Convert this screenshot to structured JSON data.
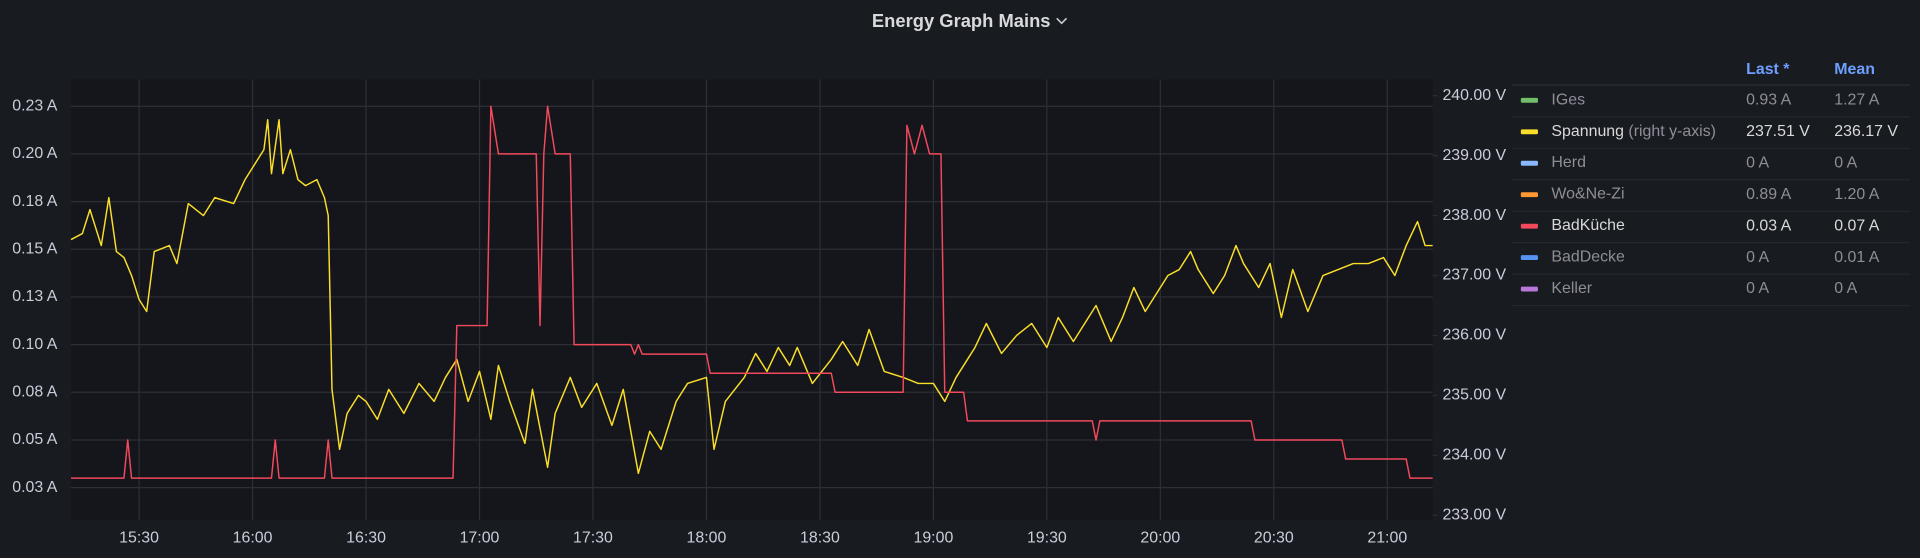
{
  "chart_data": {
    "type": "line",
    "title": "Energy Graph Mains",
    "xlim": [
      "15:12",
      "21:12"
    ],
    "xticks": [
      "15:30",
      "16:00",
      "16:30",
      "17:00",
      "17:30",
      "18:00",
      "18:30",
      "19:00",
      "19:30",
      "20:00",
      "20:30",
      "21:00"
    ],
    "ylim": [
      0.008,
      0.239
    ],
    "yticks": [
      {
        "value": 0.025,
        "label": "0.03 A"
      },
      {
        "value": 0.05,
        "label": "0.05 A"
      },
      {
        "value": 0.075,
        "label": "0.08 A"
      },
      {
        "value": 0.1,
        "label": "0.10 A"
      },
      {
        "value": 0.125,
        "label": "0.13 A"
      },
      {
        "value": 0.15,
        "label": "0.15 A"
      },
      {
        "value": 0.175,
        "label": "0.18 A"
      },
      {
        "value": 0.2,
        "label": "0.20 A"
      },
      {
        "value": 0.225,
        "label": "0.23 A"
      }
    ],
    "y2lim": [
      232.92,
      240.27
    ],
    "y2ticks": [
      {
        "value": 233,
        "label": "233.00 V"
      },
      {
        "value": 234,
        "label": "234.00 V"
      },
      {
        "value": 235,
        "label": "235.00 V"
      },
      {
        "value": 236,
        "label": "236.00 V"
      },
      {
        "value": 237,
        "label": "237.00 V"
      },
      {
        "value": 238,
        "label": "238.00 V"
      },
      {
        "value": 239,
        "label": "239.00 V"
      },
      {
        "value": 240,
        "label": "240.00 V"
      }
    ],
    "grid": true,
    "legend_position": "right",
    "legend_columns": [
      "Last *",
      "Mean"
    ],
    "series": [
      {
        "name": "IGes",
        "color": "#73bf69",
        "hidden": true,
        "last": "0.93 A",
        "mean": "1.27 A"
      },
      {
        "name": "Spannung",
        "note": "(right y-axis)",
        "color": "#fade2a",
        "axis": "y2",
        "last": "237.51 V",
        "mean": "236.17 V",
        "x": [
          "15:12",
          "15:15",
          "15:17",
          "15:20",
          "15:22",
          "15:24",
          "15:26",
          "15:28",
          "15:30",
          "15:32",
          "15:34",
          "15:38",
          "15:40",
          "15:43",
          "15:47",
          "15:50",
          "15:55",
          "15:58",
          "16:00",
          "16:03",
          "16:04",
          "16:05",
          "16:07",
          "16:08",
          "16:10",
          "16:12",
          "16:14",
          "16:17",
          "16:19",
          "16:20",
          "16:21",
          "16:23",
          "16:25",
          "16:28",
          "16:30",
          "16:33",
          "16:36",
          "16:40",
          "16:44",
          "16:48",
          "16:51",
          "16:54",
          "16:57",
          "17:00",
          "17:03",
          "17:05",
          "17:08",
          "17:12",
          "17:14",
          "17:18",
          "17:20",
          "17:24",
          "17:27",
          "17:31",
          "17:35",
          "17:38",
          "17:42",
          "17:45",
          "17:48",
          "17:52",
          "17:55",
          "18:00",
          "18:02",
          "18:05",
          "18:10",
          "18:13",
          "18:16",
          "18:19",
          "18:22",
          "18:24",
          "18:28",
          "18:33",
          "18:36",
          "18:40",
          "18:43",
          "18:47",
          "18:52",
          "18:56",
          "19:00",
          "19:03",
          "19:06",
          "19:08",
          "19:11",
          "19:14",
          "19:18",
          "19:22",
          "19:26",
          "19:30",
          "19:33",
          "19:37",
          "19:40",
          "19:43",
          "19:47",
          "19:50",
          "19:53",
          "19:56",
          "20:00",
          "20:02",
          "20:05",
          "20:08",
          "20:10",
          "20:14",
          "20:17",
          "20:20",
          "20:22",
          "20:26",
          "20:29",
          "20:32",
          "20:35",
          "20:39",
          "20:43",
          "20:47",
          "20:51",
          "20:55",
          "20:59",
          "21:02",
          "21:05",
          "21:08",
          "21:10",
          "21:12"
        ],
        "values": [
          237.6,
          237.7,
          238.1,
          237.5,
          238.3,
          237.4,
          237.3,
          237.0,
          236.6,
          236.4,
          237.4,
          237.5,
          237.2,
          238.2,
          238.0,
          238.3,
          238.2,
          238.6,
          238.8,
          239.1,
          239.6,
          238.7,
          239.6,
          238.7,
          239.1,
          238.6,
          238.5,
          238.6,
          238.3,
          238.0,
          235.1,
          234.1,
          234.7,
          235.0,
          234.9,
          234.6,
          235.1,
          234.7,
          235.2,
          234.9,
          235.3,
          235.6,
          234.9,
          235.4,
          234.6,
          235.5,
          234.9,
          234.2,
          235.1,
          233.8,
          234.7,
          235.3,
          234.8,
          235.2,
          234.5,
          235.1,
          233.7,
          234.4,
          234.1,
          234.9,
          235.2,
          235.3,
          234.1,
          234.9,
          235.3,
          235.7,
          235.4,
          235.8,
          235.5,
          235.8,
          235.2,
          235.6,
          235.9,
          235.5,
          236.1,
          235.4,
          235.3,
          235.2,
          235.2,
          234.9,
          235.3,
          235.5,
          235.8,
          236.2,
          235.7,
          236.0,
          236.2,
          235.8,
          236.3,
          235.9,
          236.2,
          236.5,
          235.9,
          236.3,
          236.8,
          236.4,
          236.8,
          237.0,
          237.1,
          237.4,
          237.1,
          236.7,
          237.0,
          237.5,
          237.2,
          236.8,
          237.2,
          236.3,
          237.1,
          236.4,
          237.0,
          237.1,
          237.2,
          237.2,
          237.3,
          237.0,
          237.5,
          237.9,
          237.5,
          237.5
        ]
      },
      {
        "name": "Herd",
        "color": "#8ab8ff",
        "hidden": true,
        "last": "0 A",
        "mean": "0 A"
      },
      {
        "name": "Wo&Ne-Zi",
        "color": "#ff9830",
        "hidden": true,
        "last": "0.89 A",
        "mean": "1.20 A"
      },
      {
        "name": "BadKüche",
        "color": "#f2495c",
        "last": "0.03 A",
        "mean": "0.07 A",
        "x": [
          "15:12",
          "15:26",
          "15:27",
          "15:28",
          "16:05",
          "16:06",
          "16:07",
          "16:19",
          "16:20",
          "16:21",
          "16:53",
          "16:54",
          "17:02",
          "17:03",
          "17:05",
          "17:15",
          "17:16",
          "17:17",
          "17:18",
          "17:20",
          "17:24",
          "17:25",
          "17:40",
          "17:41",
          "17:42",
          "17:43",
          "18:00",
          "18:01",
          "18:33",
          "18:34",
          "18:52",
          "18:53",
          "18:55",
          "18:57",
          "18:59",
          "19:02",
          "19:03",
          "19:08",
          "19:09",
          "19:42",
          "19:43",
          "19:44",
          "20:24",
          "20:25",
          "20:48",
          "20:49",
          "21:05",
          "21:06",
          "21:12"
        ],
        "values": [
          0.03,
          0.03,
          0.05,
          0.03,
          0.03,
          0.05,
          0.03,
          0.03,
          0.05,
          0.03,
          0.03,
          0.11,
          0.11,
          0.225,
          0.2,
          0.2,
          0.11,
          0.2,
          0.225,
          0.2,
          0.2,
          0.1,
          0.1,
          0.095,
          0.1,
          0.095,
          0.095,
          0.085,
          0.085,
          0.075,
          0.075,
          0.215,
          0.2,
          0.215,
          0.2,
          0.2,
          0.075,
          0.075,
          0.06,
          0.06,
          0.05,
          0.06,
          0.06,
          0.05,
          0.05,
          0.04,
          0.04,
          0.03,
          0.03
        ]
      },
      {
        "name": "BadDecke",
        "color": "#5794f2",
        "hidden": true,
        "last": "0 A",
        "mean": "0.01 A"
      },
      {
        "name": "Keller",
        "color": "#b877d9",
        "hidden": true,
        "last": "0 A",
        "mean": "0 A"
      }
    ]
  }
}
